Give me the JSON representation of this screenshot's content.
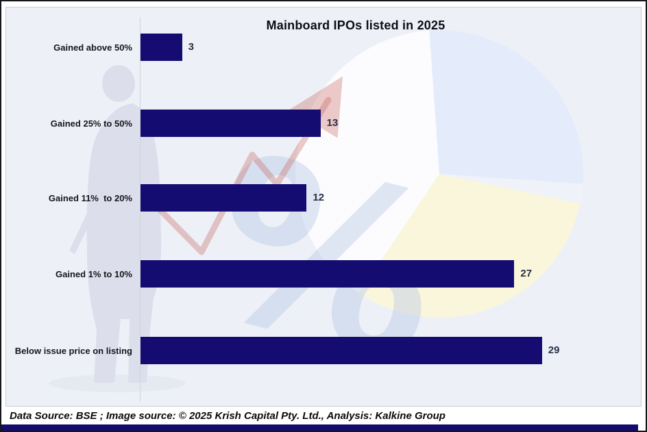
{
  "chart_data": {
    "type": "bar",
    "orientation": "horizontal",
    "title": "Mainboard IPOs listed in 2025",
    "categories": [
      "Gained above 50%",
      "Gained 25% to 50%",
      "Gained 11%  to 20%",
      "Gained 1% to 10%",
      "Below issue price on listing"
    ],
    "values": [
      3,
      13,
      12,
      27,
      29
    ],
    "xlim": [
      0,
      36
    ],
    "bar_color": "#150c72",
    "grid": false,
    "legend": false,
    "value_labels_shown": true
  },
  "footer": {
    "text": "Data Source: BSE ; Image source: © 2025 Krish Capital Pty. Ltd., Analysis: Kalkine Group"
  },
  "watermarks": {
    "percent_glyph": "%",
    "percent_color": "rgba(183,198,229,0.42)",
    "pie_blue": "#e4ebfa",
    "pie_yellow": "#fbf6db",
    "pie_white": "#fdfdfe",
    "pie_gap": "#eff3f9",
    "arrow_red": "rgba(197,94,88,0.32)",
    "silhouette_gray": "#dcdfeb"
  },
  "colors": {
    "ribbon_navy": "#140c6d",
    "panel_bg": "#edf1f7",
    "frame_border": "#15161d",
    "panel_border": "#c9cdd5",
    "title_color": "#0c0c14",
    "label_color": "#14161c",
    "value_color": "#293147"
  }
}
